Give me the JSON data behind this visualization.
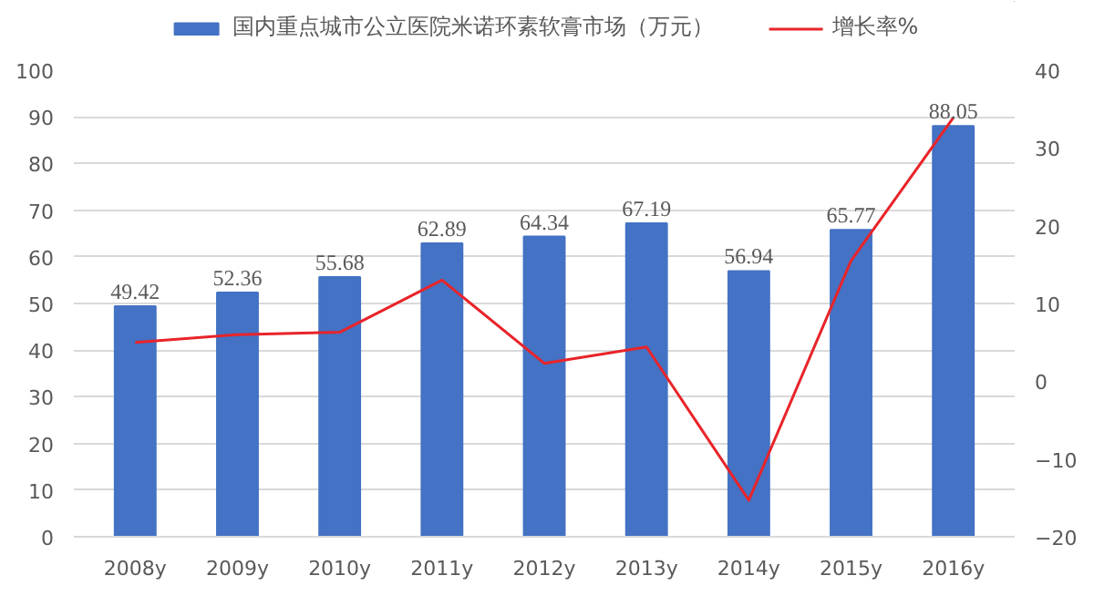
{
  "chart_data": {
    "type": "bar",
    "categories": [
      "2008y",
      "2009y",
      "2010y",
      "2011y",
      "2012y",
      "2013y",
      "2014y",
      "2015y",
      "2016y"
    ],
    "series": [
      {
        "name": "国内重点城市公立医院米诺环素软膏市场（万元）",
        "color": "#4472c4",
        "values": [
          49.42,
          52.36,
          55.68,
          62.89,
          64.34,
          67.19,
          56.94,
          65.77,
          88.05
        ],
        "value_labels": [
          "49.42",
          "52.36",
          "55.68",
          "62.89",
          "64.34",
          "67.19",
          "56.94",
          "65.77",
          "88.05"
        ]
      },
      {
        "name": "增长率%",
        "type": "line",
        "axis": "y2",
        "color": "#e8242a",
        "values": [
          5,
          6,
          6.3,
          13,
          2.3,
          4.4,
          -15.3,
          15.5,
          33.9
        ]
      }
    ],
    "ylim": [
      0,
      100
    ],
    "yticks": [
      0,
      10,
      20,
      30,
      40,
      50,
      60,
      70,
      80,
      90,
      100
    ],
    "y2lim": [
      -20,
      40
    ],
    "y2ticks": [
      -20,
      -10,
      0,
      10,
      20,
      30,
      40
    ],
    "grid": "y",
    "legend": "top",
    "marker": "none"
  }
}
